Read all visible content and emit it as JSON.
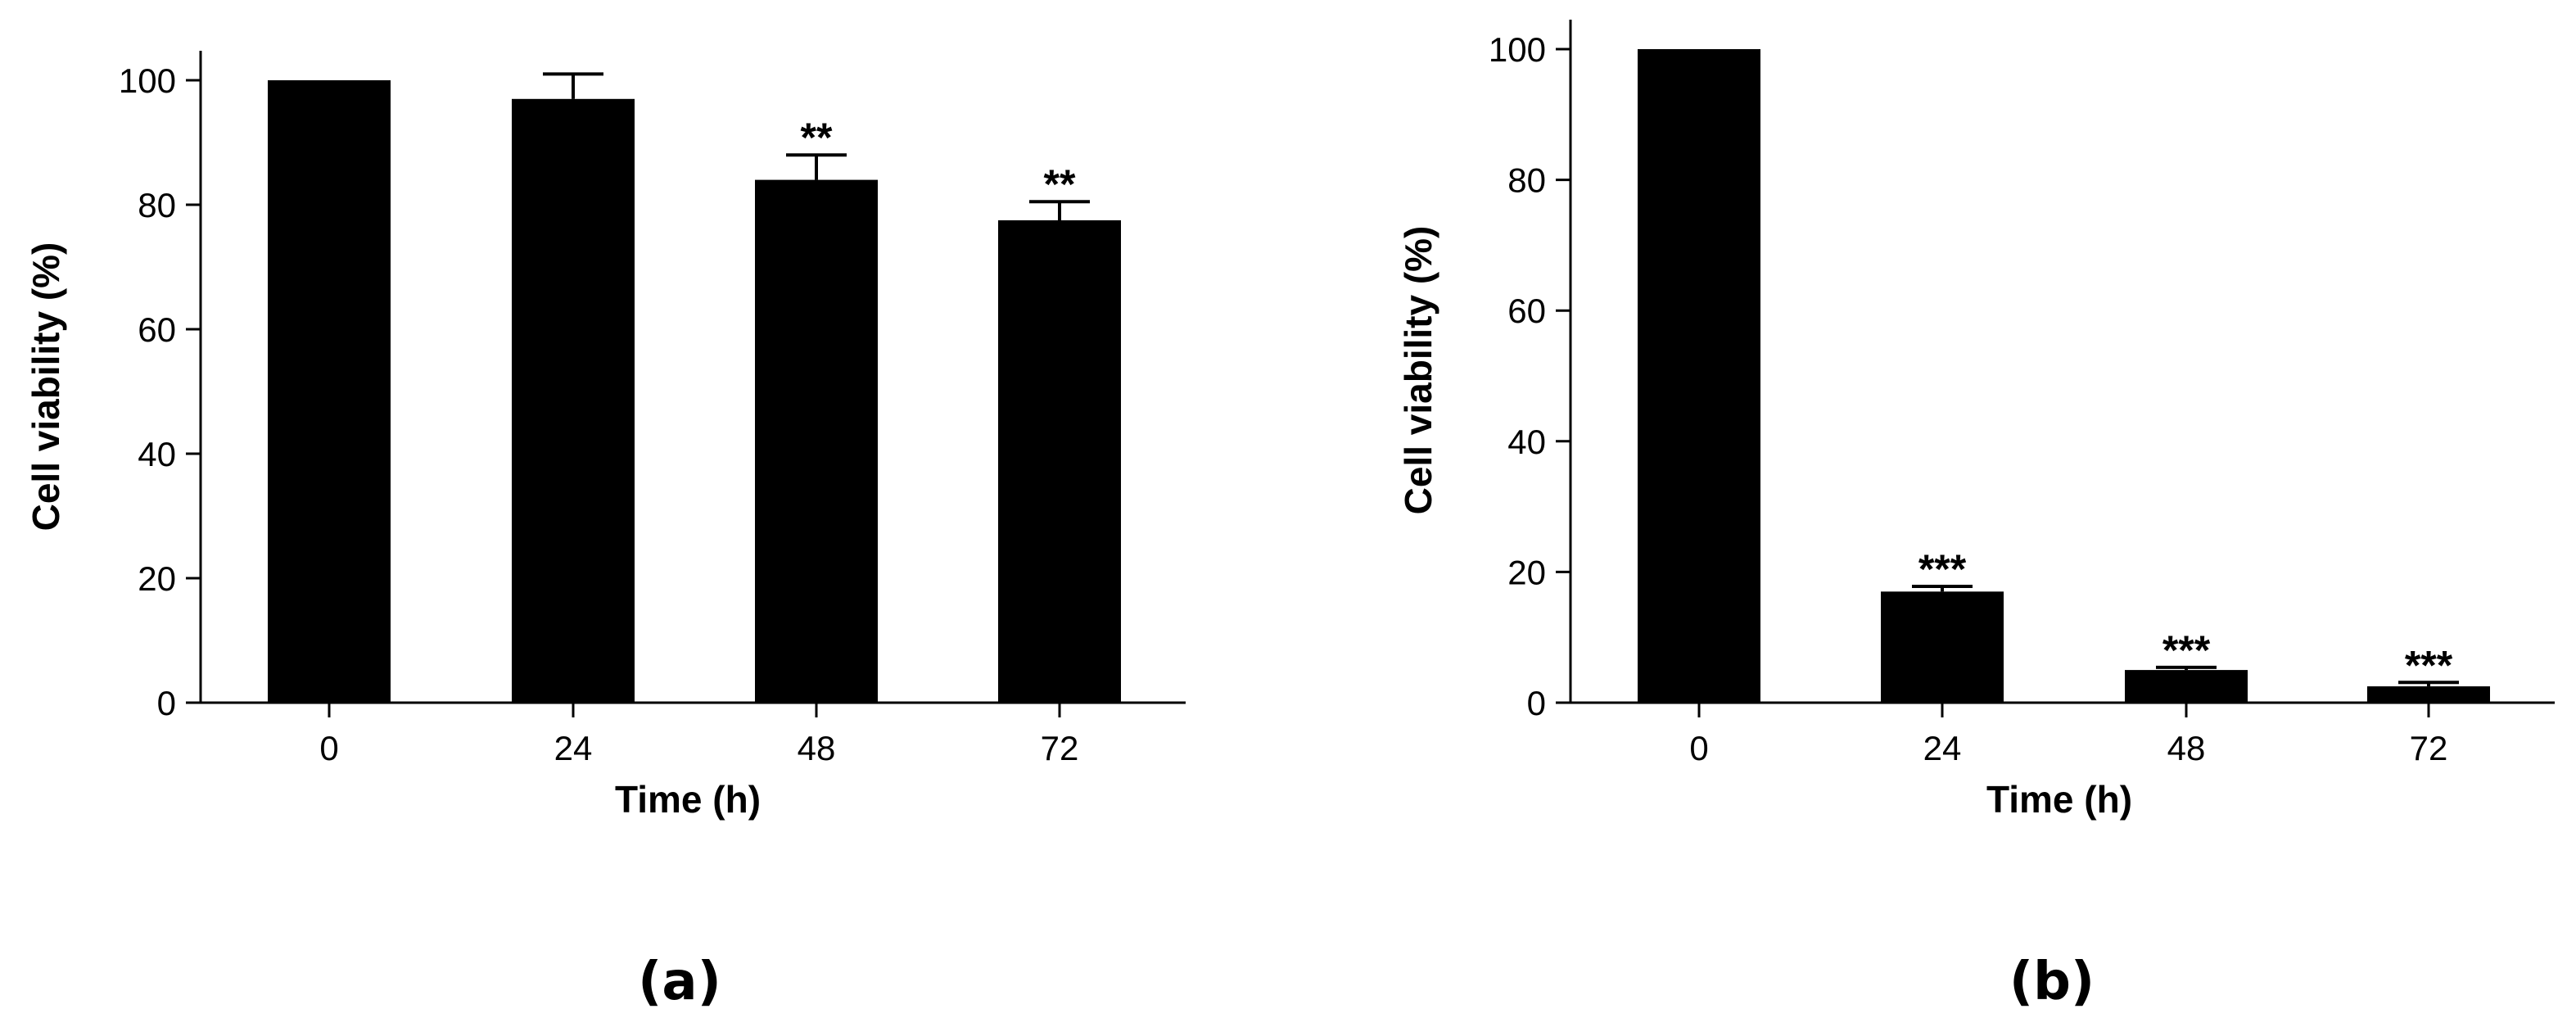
{
  "chart_data": [
    {
      "type": "bar",
      "panel_label": "(a)",
      "categories": [
        "0",
        "24",
        "48",
        "72"
      ],
      "values": [
        100,
        97,
        84,
        77.5
      ],
      "errors": [
        0,
        4,
        4,
        3
      ],
      "significance": [
        "",
        "",
        "**",
        "**"
      ],
      "xlabel": "Time (h)",
      "ylabel": "Cell viability (%)",
      "ylim": [
        0,
        100
      ],
      "yticks": [
        "0",
        "20",
        "40",
        "60",
        "80",
        "100"
      ],
      "bar_color": "#000000",
      "grid": false
    },
    {
      "type": "bar",
      "panel_label": "(b)",
      "categories": [
        "0",
        "24",
        "48",
        "72"
      ],
      "values": [
        100,
        17,
        5,
        2.5
      ],
      "errors": [
        0,
        0.8,
        0.4,
        0.6
      ],
      "significance": [
        "",
        "***",
        "***",
        "***"
      ],
      "xlabel": "Time (h)",
      "ylabel": "Cell viability (%)",
      "ylim": [
        0,
        100
      ],
      "yticks": [
        "0",
        "20",
        "40",
        "60",
        "80",
        "100"
      ],
      "bar_color": "#000000",
      "grid": false
    }
  ]
}
